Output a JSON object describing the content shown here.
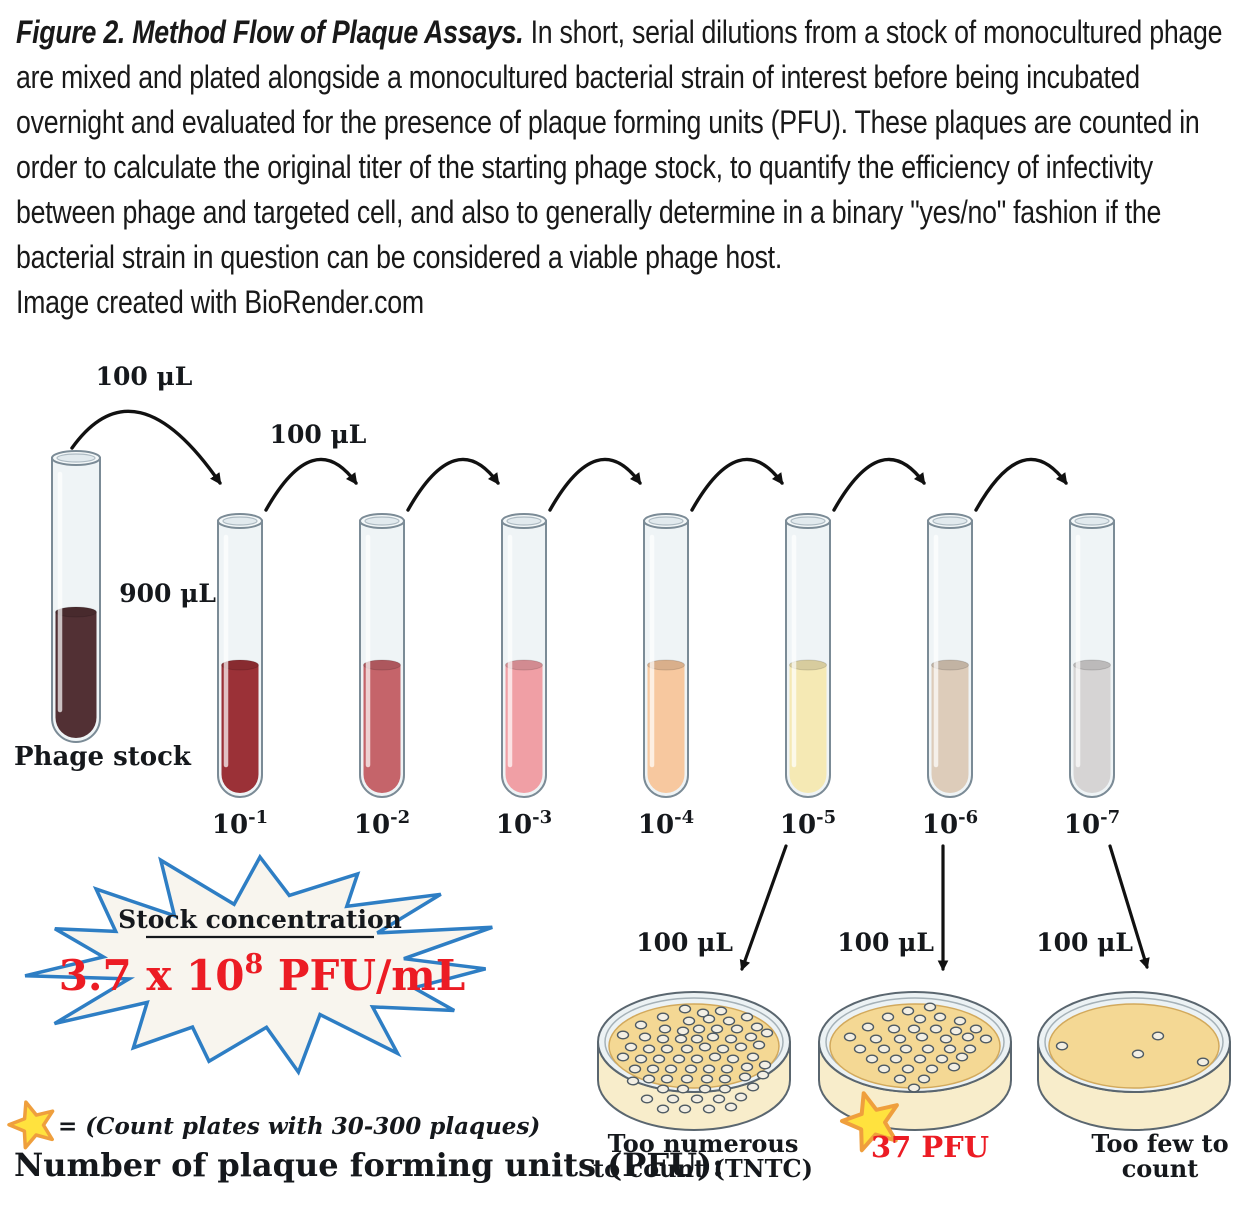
{
  "caption": {
    "title": "Figure 2. Method Flow of Plaque Assays.",
    "body": " In short, serial dilutions from a stock of monocultured phage are mixed and plated alongside a monocultured bacterial strain of interest before being incubated overnight and evaluated for the presence of plaque forming units (PFU). These plaques are counted in order to calculate the original titer of the starting phage stock, to quantify the efficiency of infectivity between phage and targeted cell, and also to generally determine in a binary \"yes/no\" fashion if the bacterial strain in question can be considered a viable phage host.",
    "credit": "Image created with BioRender.com"
  },
  "dilution": {
    "transfer_volume": "100 μL",
    "diluent_volume": "900 μL",
    "stock": {
      "label": "Phage stock",
      "color": "#523034"
    },
    "tubes": [
      {
        "label": "10",
        "exp": "-1",
        "color": "#9b3137"
      },
      {
        "label": "10",
        "exp": "-2",
        "color": "#c5646a"
      },
      {
        "label": "10",
        "exp": "-3",
        "color": "#f09fa5"
      },
      {
        "label": "10",
        "exp": "-4",
        "color": "#f7c89f"
      },
      {
        "label": "10",
        "exp": "-5",
        "color": "#f5e9b4"
      },
      {
        "label": "10",
        "exp": "-6",
        "color": "#ddccba"
      },
      {
        "label": "10",
        "exp": "-7",
        "color": "#d6d4d4"
      }
    ]
  },
  "stock_burst": {
    "heading": "Stock concentration",
    "value_base": "3.7 x 10",
    "value_exp": "8",
    "value_unit": " PFU/mL",
    "value_color": "#ec1c24",
    "outline_color": "#2e7ec4"
  },
  "legend": {
    "star_meaning": "= (Count plates with 30-300 plaques)",
    "pfu_heading": "Number of plaque forming units (PFU):"
  },
  "plates": [
    {
      "volume": "100 μL",
      "label_lines": [
        "Too numerous",
        "to count (TNTC)"
      ],
      "starred": false,
      "dots": [
        [
          -9,
          -33
        ],
        [
          9,
          -29
        ],
        [
          27,
          -31
        ],
        [
          -31,
          -25
        ],
        [
          -5,
          -21
        ],
        [
          15,
          -23
        ],
        [
          35,
          -21
        ],
        [
          53,
          -25
        ],
        [
          -53,
          -17
        ],
        [
          -29,
          -13
        ],
        [
          -11,
          -11
        ],
        [
          5,
          -13
        ],
        [
          23,
          -13
        ],
        [
          43,
          -13
        ],
        [
          63,
          -15
        ],
        [
          -71,
          -7
        ],
        [
          -49,
          -5
        ],
        [
          -31,
          -3
        ],
        [
          -13,
          -3
        ],
        [
          3,
          -3
        ],
        [
          19,
          -5
        ],
        [
          37,
          -3
        ],
        [
          57,
          -5
        ],
        [
          73,
          -9
        ],
        [
          -63,
          5
        ],
        [
          -45,
          7
        ],
        [
          -27,
          7
        ],
        [
          -7,
          7
        ],
        [
          11,
          5
        ],
        [
          29,
          7
        ],
        [
          47,
          5
        ],
        [
          65,
          3
        ],
        [
          -71,
          15
        ],
        [
          -53,
          17
        ],
        [
          -35,
          17
        ],
        [
          -15,
          17
        ],
        [
          3,
          17
        ],
        [
          21,
          15
        ],
        [
          39,
          17
        ],
        [
          59,
          15
        ],
        [
          -59,
          27
        ],
        [
          -41,
          27
        ],
        [
          -23,
          27
        ],
        [
          -3,
          27
        ],
        [
          15,
          27
        ],
        [
          33,
          27
        ],
        [
          53,
          25
        ],
        [
          71,
          23
        ],
        [
          -45,
          37
        ],
        [
          -27,
          37
        ],
        [
          -7,
          37
        ],
        [
          13,
          37
        ],
        [
          31,
          37
        ],
        [
          51,
          35
        ],
        [
          -31,
          47
        ],
        [
          -11,
          47
        ],
        [
          11,
          47
        ],
        [
          31,
          47
        ],
        [
          -47,
          57
        ],
        [
          -21,
          57
        ],
        [
          3,
          57
        ],
        [
          25,
          57
        ],
        [
          47,
          55
        ],
        [
          -9,
          67
        ],
        [
          15,
          67
        ],
        [
          37,
          65
        ],
        [
          -31,
          67
        ],
        [
          59,
          45
        ],
        [
          -61,
          39
        ],
        [
          69,
          33
        ]
      ]
    },
    {
      "volume": "100 μL",
      "label_lines": [
        "37 PFU"
      ],
      "starred": true,
      "dots": [
        [
          -7,
          -31
        ],
        [
          15,
          -35
        ],
        [
          -27,
          -25
        ],
        [
          5,
          -23
        ],
        [
          25,
          -25
        ],
        [
          45,
          -21
        ],
        [
          -47,
          -15
        ],
        [
          -21,
          -13
        ],
        [
          -1,
          -13
        ],
        [
          21,
          -13
        ],
        [
          41,
          -11
        ],
        [
          61,
          -13
        ],
        [
          -65,
          -5
        ],
        [
          -39,
          -3
        ],
        [
          -15,
          -3
        ],
        [
          7,
          -5
        ],
        [
          31,
          -3
        ],
        [
          53,
          -5
        ],
        [
          71,
          -3
        ],
        [
          -55,
          7
        ],
        [
          -31,
          7
        ],
        [
          -9,
          7
        ],
        [
          13,
          7
        ],
        [
          35,
          7
        ],
        [
          55,
          7
        ],
        [
          -43,
          17
        ],
        [
          -19,
          17
        ],
        [
          5,
          17
        ],
        [
          27,
          17
        ],
        [
          47,
          15
        ],
        [
          -31,
          27
        ],
        [
          -7,
          27
        ],
        [
          17,
          27
        ],
        [
          39,
          25
        ],
        [
          -15,
          37
        ],
        [
          9,
          37
        ],
        [
          -1,
          46
        ]
      ]
    },
    {
      "volume": "100 μL",
      "label_lines": [
        "Too few to",
        "count"
      ],
      "starred": false,
      "dots": [
        [
          -72,
          4
        ],
        [
          24,
          -6
        ],
        [
          4,
          12
        ],
        [
          69,
          20
        ]
      ]
    }
  ]
}
